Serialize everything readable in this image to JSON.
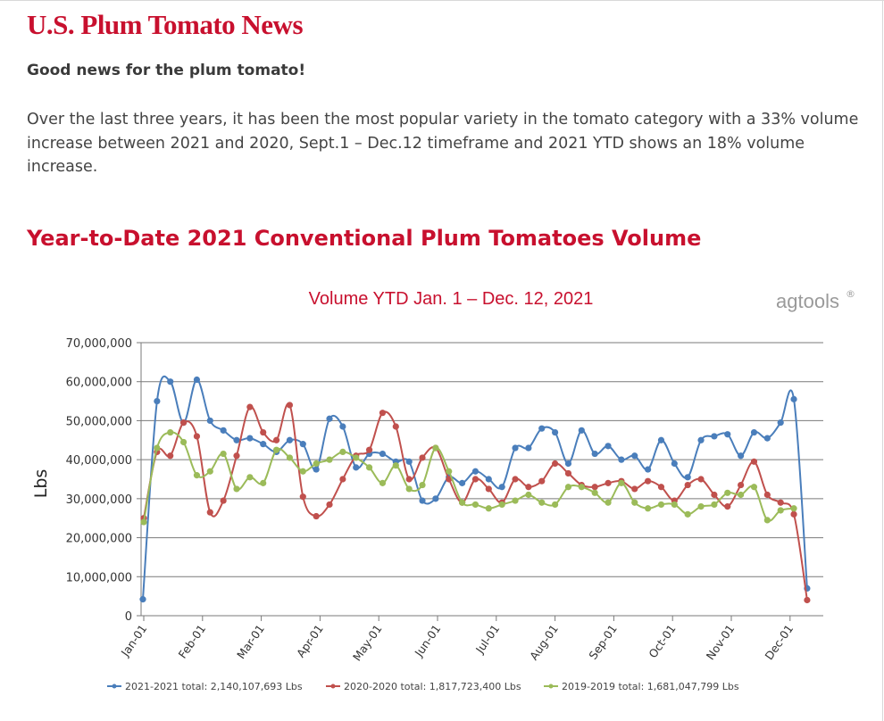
{
  "page": {
    "title": "U.S. Plum Tomato News",
    "lead": "Good news for the plum tomato!",
    "paragraph": "Over the last three years, it has been the most popular variety in the tomato category with a 33% volume increase between 2021 and 2020, Sept.1 – Dec.12 timeframe and 2021 YTD shows an 18% volume increase.",
    "section_title": "Year-to-Date 2021 Conventional Plum Tomatoes Volume"
  },
  "colors": {
    "brand_red": "#c8102e",
    "series_blue": "#4a7ebb",
    "series_red": "#c0504d",
    "series_green": "#9bbb59"
  },
  "chart_data": {
    "type": "line",
    "title": "Volume YTD Jan. 1 – Dec. 12, 2021",
    "logo_text": "agtools",
    "xlabel": "",
    "ylabel": "Lbs",
    "ylim": [
      0,
      70000000
    ],
    "yticks": [
      0,
      10000000,
      20000000,
      30000000,
      40000000,
      50000000,
      60000000,
      70000000
    ],
    "ytick_labels": [
      "0",
      "10,000,000",
      "20,000,000",
      "30,000,000",
      "40,000,000",
      "50,000,000",
      "60,000,000",
      "70,000,000"
    ],
    "x_labels": [
      "Jan-01",
      "Feb-01",
      "Mar-01",
      "Apr-01",
      "May-01",
      "Jun-01",
      "Jul-01",
      "Aug-01",
      "Sep-01",
      "Oct-01",
      "Nov-01",
      "Dec-01"
    ],
    "grid": true,
    "legend_position": "bottom",
    "series": [
      {
        "name": "2021-2021 total: 2,140,107,693 Lbs",
        "color": "#4a7ebb",
        "values": [
          4200000,
          55000000,
          60000000,
          49500000,
          60500000,
          50000000,
          47500000,
          45000000,
          45500000,
          44000000,
          42000000,
          45000000,
          44000000,
          37500000,
          50500000,
          48500000,
          38000000,
          41500000,
          41500000,
          39500000,
          39500000,
          29500000,
          30000000,
          35500000,
          34000000,
          37000000,
          35000000,
          33000000,
          43000000,
          43000000,
          48000000,
          47000000,
          39000000,
          47500000,
          41500000,
          43500000,
          40000000,
          41000000,
          37500000,
          45000000,
          39000000,
          35500000,
          45000000,
          46000000,
          46500000,
          41000000,
          47000000,
          45500000,
          49500000,
          55500000,
          7000000
        ]
      },
      {
        "name": "2020-2020 total: 1,817,723,400 Lbs",
        "color": "#c0504d",
        "values": [
          25000000,
          42000000,
          41000000,
          49500000,
          46000000,
          26500000,
          29500000,
          41000000,
          53500000,
          47000000,
          45000000,
          54000000,
          30500000,
          25500000,
          28500000,
          35000000,
          41000000,
          42500000,
          52000000,
          48500000,
          35000000,
          40500000,
          43000000,
          35000000,
          29000000,
          35000000,
          32500000,
          29000000,
          35000000,
          33000000,
          34500000,
          39000000,
          36500000,
          33500000,
          33000000,
          34000000,
          34500000,
          32500000,
          34500000,
          33000000,
          29500000,
          33500000,
          35000000,
          31000000,
          28000000,
          33500000,
          39500000,
          31000000,
          29000000,
          26000000,
          4000000
        ]
      },
      {
        "name": "2019-2019 total: 1,681,047,799 Lbs",
        "color": "#9bbb59",
        "values": [
          24000000,
          43000000,
          47000000,
          44500000,
          36000000,
          37000000,
          41500000,
          32500000,
          35500000,
          34000000,
          42500000,
          40500000,
          37000000,
          39000000,
          40000000,
          42000000,
          40500000,
          38000000,
          34000000,
          38500000,
          32500000,
          33500000,
          43000000,
          37000000,
          29000000,
          28500000,
          27500000,
          28500000,
          29500000,
          31000000,
          29000000,
          28500000,
          33000000,
          33000000,
          31500000,
          29000000,
          34000000,
          29000000,
          27500000,
          28500000,
          28500000,
          26000000,
          28000000,
          28500000,
          31500000,
          31000000,
          33000000,
          24500000,
          27000000,
          27500000
        ]
      }
    ]
  }
}
